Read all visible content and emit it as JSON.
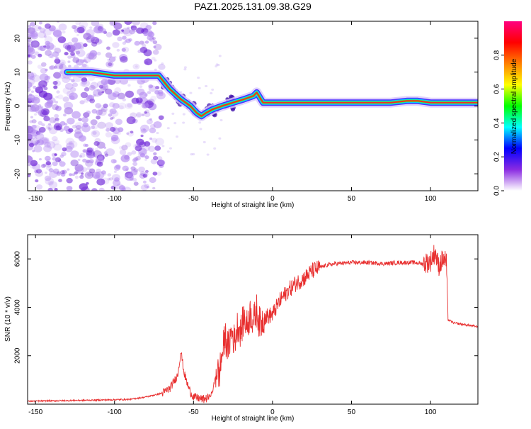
{
  "title": "PAZ1.2025.131.09.38.G29",
  "colors": {
    "snr_line": "#e83030",
    "axis": "#000000",
    "background": "#ffffff"
  },
  "chart_data": [
    {
      "type": "heatmap",
      "title": "PAZ1.2025.131.09.38.G29",
      "xlabel": "Height of straight line (km)",
      "ylabel": "Frequency (Hz)",
      "xlim": [
        -155,
        130
      ],
      "ylim": [
        -25,
        25
      ],
      "xticks": [
        -150,
        -100,
        -50,
        0,
        50,
        100
      ],
      "yticks": [
        -20,
        -10,
        0,
        10,
        20
      ],
      "ridge": {
        "description_x_km": [
          -130,
          -115,
          -100,
          -90,
          -80,
          -72,
          -65,
          -58,
          -52,
          -48,
          -45,
          -42,
          -38,
          -32,
          -25,
          -18,
          -12,
          -10,
          -6,
          0,
          20,
          40,
          60,
          75,
          85,
          92,
          100,
          110,
          120,
          130
        ],
        "frequency_hz": [
          10,
          10,
          9,
          9,
          9,
          9,
          5,
          2,
          0,
          -2,
          -3,
          -2,
          -1,
          0,
          1,
          2,
          3,
          4,
          1,
          1,
          1,
          1,
          1,
          1,
          1.5,
          1.5,
          1,
          1,
          1,
          1
        ]
      },
      "colorbar": {
        "label": "Normalized spectral amplitude",
        "range": [
          0,
          1
        ],
        "ticks": [
          "0.0",
          "0.2",
          "0.4",
          "0.6",
          "0.8"
        ],
        "tick_values": [
          0,
          0.2,
          0.4,
          0.6,
          0.8
        ],
        "colormap": [
          "#ffffff",
          "#8a2be2",
          "#0000ff",
          "#00ffff",
          "#00ff00",
          "#ffff00",
          "#ff8000",
          "#ff0000",
          "#ff0080"
        ]
      }
    },
    {
      "type": "line",
      "xlabel": "Height of straight line (km)",
      "ylabel": "SNR (10 * v/v)",
      "xlim": [
        -155,
        130
      ],
      "ylim": [
        0,
        7000
      ],
      "xticks": [
        -150,
        -100,
        -50,
        0,
        50,
        100
      ],
      "yticks": [
        2000,
        4000,
        6000
      ],
      "series": [
        {
          "name": "SNR",
          "x": [
            -155,
            -130,
            -110,
            -90,
            -80,
            -70,
            -65,
            -60,
            -58,
            -56,
            -54,
            -52,
            -50,
            -47,
            -44,
            -42,
            -40,
            -38,
            -36,
            -35,
            -34,
            -32,
            -30,
            -28,
            -26,
            -24,
            -22,
            -20,
            -18,
            -16,
            -14,
            -12,
            -10,
            -8,
            -5,
            0,
            5,
            10,
            15,
            20,
            25,
            30,
            35,
            40,
            50,
            60,
            70,
            80,
            90,
            95,
            100,
            103,
            105,
            108,
            110,
            111,
            112,
            115,
            120,
            125,
            130
          ],
          "values": [
            120,
            150,
            170,
            200,
            300,
            450,
            650,
            1200,
            2200,
            1300,
            850,
            500,
            300,
            250,
            200,
            230,
            300,
            500,
            1200,
            1500,
            1100,
            2000,
            2800,
            2300,
            3000,
            2600,
            3300,
            3000,
            3600,
            3200,
            3800,
            3400,
            3900,
            3300,
            3600,
            3700,
            4300,
            4700,
            5000,
            5200,
            5500,
            5650,
            5750,
            5800,
            5850,
            5850,
            5800,
            5850,
            5850,
            5800,
            5900,
            6300,
            5700,
            6000,
            5900,
            3500,
            3450,
            3350,
            3300,
            3250,
            3200
          ]
        }
      ]
    }
  ]
}
